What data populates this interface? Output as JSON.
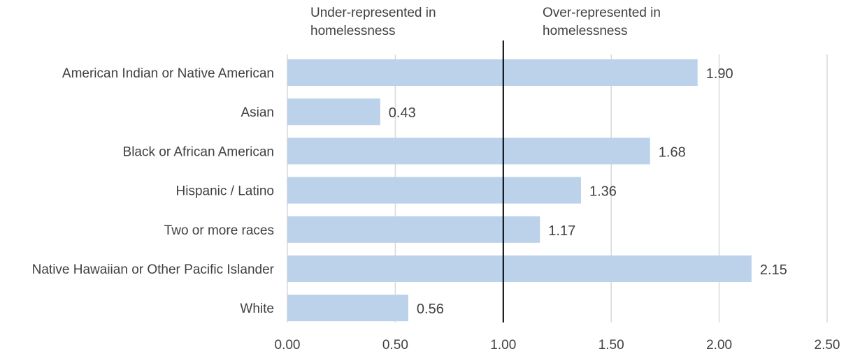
{
  "chart_data": {
    "type": "bar",
    "orientation": "horizontal",
    "categories": [
      "American Indian or Native American",
      "Asian",
      "Black or African American",
      "Hispanic / Latino",
      "Two or more races",
      "Native Hawaiian or Other Pacific Islander",
      "White"
    ],
    "values": [
      1.9,
      0.43,
      1.68,
      1.36,
      1.17,
      2.15,
      0.56
    ],
    "value_labels": [
      "1.90",
      "0.43",
      "1.68",
      "1.36",
      "1.17",
      "2.15",
      "0.56"
    ],
    "xlim": [
      0,
      2.5
    ],
    "x_ticks": [
      0,
      0.5,
      1.0,
      1.5,
      2.0,
      2.5
    ],
    "x_tick_labels": [
      "0.00",
      "0.50",
      "1.00",
      "1.50",
      "2.00",
      "2.50"
    ],
    "grid": "vertical",
    "reference_line": 1.0,
    "annotations": {
      "left": [
        "Under-represented in",
        "homelessness"
      ],
      "right": [
        "Over-represented in",
        "homelessness"
      ]
    },
    "colors": {
      "bar": "#bcd1ea",
      "grid": "#d9d9d9",
      "reference_line": "#000000",
      "text": "#404040"
    },
    "title": "",
    "xlabel": "",
    "ylabel": ""
  }
}
